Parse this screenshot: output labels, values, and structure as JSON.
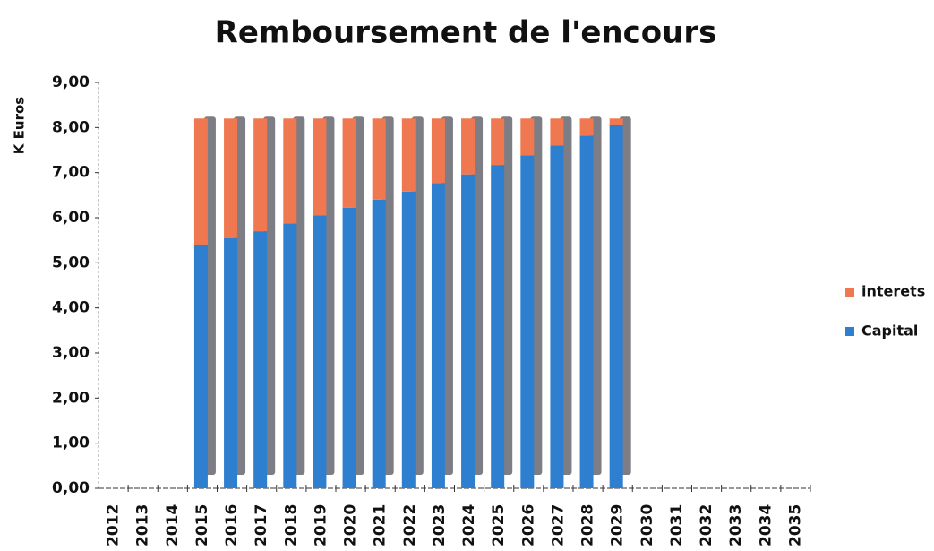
{
  "chart_data": {
    "type": "stacked_bar",
    "title": "Remboursement de l'encours",
    "y_label": "K Euros",
    "categories": [
      "2012",
      "2013",
      "2014",
      "2015",
      "2016",
      "2017",
      "2018",
      "2019",
      "2020",
      "2021",
      "2022",
      "2023",
      "2024",
      "2025",
      "2026",
      "2027",
      "2028",
      "2029",
      "2030",
      "2031",
      "2032",
      "2033",
      "2034",
      "2035"
    ],
    "series": [
      {
        "name": "Capital",
        "color": "#2f7fd0",
        "values": [
          null,
          null,
          null,
          5.4,
          5.55,
          5.7,
          5.87,
          6.05,
          6.22,
          6.4,
          6.58,
          6.77,
          6.96,
          7.17,
          7.38,
          7.6,
          7.82,
          8.05,
          null,
          null,
          null,
          null,
          null,
          null
        ]
      },
      {
        "name": "interets",
        "color": "#f07850",
        "values": [
          null,
          null,
          null,
          2.8,
          2.65,
          2.5,
          2.33,
          2.15,
          1.98,
          1.8,
          1.62,
          1.43,
          1.24,
          1.03,
          0.82,
          0.6,
          0.38,
          0.15,
          null,
          null,
          null,
          null,
          null,
          null
        ]
      }
    ],
    "ylim": [
      0,
      9
    ],
    "yticks": [
      {
        "value": 0,
        "label": "0,00"
      },
      {
        "value": 1,
        "label": "1,00"
      },
      {
        "value": 2,
        "label": "2,00"
      },
      {
        "value": 3,
        "label": "3,00"
      },
      {
        "value": 4,
        "label": "4,00"
      },
      {
        "value": 5,
        "label": "5,00"
      },
      {
        "value": 6,
        "label": "6,00"
      },
      {
        "value": 7,
        "label": "7,00"
      },
      {
        "value": 8,
        "label": "8,00"
      },
      {
        "value": 9,
        "label": "9,00"
      }
    ],
    "grid": false,
    "legend": "right"
  }
}
